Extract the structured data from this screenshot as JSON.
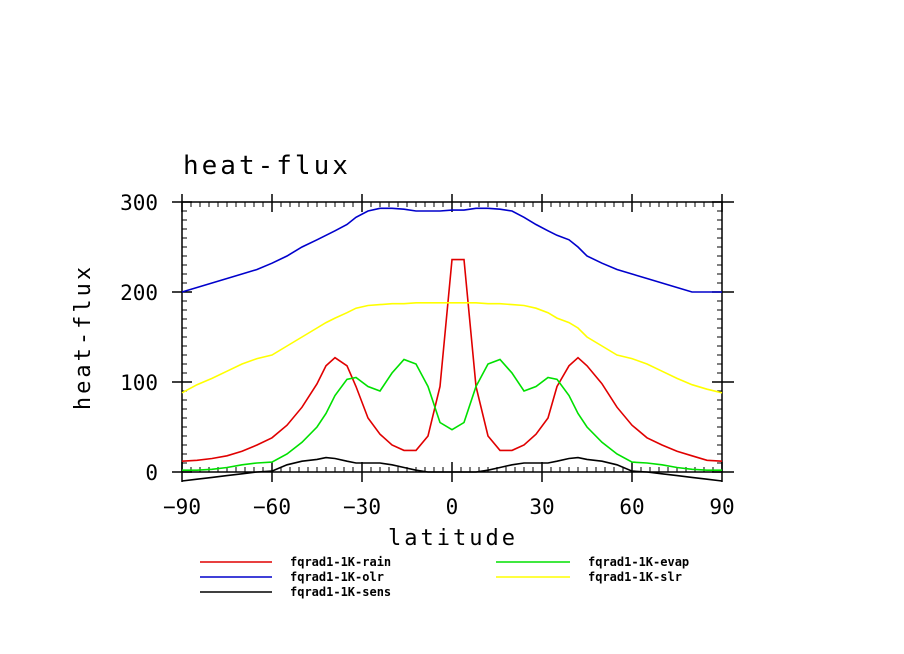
{
  "chart_data": {
    "type": "line",
    "title": "heat-flux",
    "xlabel": "latitude",
    "ylabel": "heat-flux",
    "xlim": [
      -90,
      90
    ],
    "ylim": [
      0,
      300
    ],
    "xticks": [
      -90,
      -60,
      -30,
      0,
      30,
      60,
      90
    ],
    "yticks": [
      0,
      100,
      200,
      300
    ],
    "grid": false,
    "legend_placement": "bottom",
    "x": [
      -90,
      -85,
      -80,
      -75,
      -70,
      -65,
      -60,
      -55,
      -50,
      -45,
      -42,
      -39,
      -35,
      -32,
      -28,
      -24,
      -20,
      -16,
      -12,
      -8,
      -4,
      0,
      4,
      8,
      12,
      16,
      20,
      24,
      28,
      32,
      35,
      39,
      42,
      45,
      50,
      55,
      60,
      65,
      70,
      75,
      80,
      85,
      90
    ],
    "series": [
      {
        "name": "fqrad1-1K-rain",
        "color": "#e00000",
        "values": [
          12,
          13,
          15,
          18,
          23,
          30,
          38,
          52,
          72,
          98,
          118,
          127,
          118,
          95,
          60,
          42,
          30,
          24,
          24,
          40,
          95,
          236,
          236,
          95,
          40,
          24,
          24,
          30,
          42,
          60,
          95,
          118,
          127,
          118,
          98,
          72,
          52,
          38,
          30,
          23,
          18,
          13,
          12
        ]
      },
      {
        "name": "fqrad1-1K-evap",
        "color": "#00e000",
        "values": [
          2,
          2,
          3,
          5,
          8,
          10,
          11,
          20,
          33,
          50,
          65,
          85,
          103,
          105,
          95,
          90,
          110,
          125,
          120,
          95,
          55,
          47,
          55,
          95,
          120,
          125,
          110,
          90,
          95,
          105,
          103,
          85,
          65,
          50,
          33,
          20,
          11,
          10,
          8,
          5,
          3,
          2,
          2
        ]
      },
      {
        "name": "fqrad1-1K-olr",
        "color": "#0000cc",
        "values": [
          200,
          205,
          210,
          215,
          220,
          225,
          232,
          240,
          250,
          258,
          263,
          268,
          275,
          283,
          290,
          293,
          293,
          292,
          290,
          290,
          290,
          291,
          291,
          293,
          293,
          292,
          290,
          283,
          275,
          268,
          263,
          258,
          250,
          240,
          232,
          225,
          220,
          215,
          210,
          205,
          200,
          200,
          200
        ]
      },
      {
        "name": "fqrad1-1K-slr",
        "color": "#ffff00",
        "values": [
          88,
          97,
          104,
          112,
          120,
          126,
          130,
          140,
          150,
          160,
          166,
          171,
          177,
          182,
          185,
          186,
          187,
          187,
          188,
          188,
          188,
          188,
          188,
          188,
          187,
          187,
          186,
          185,
          182,
          177,
          171,
          166,
          160,
          150,
          140,
          130,
          126,
          120,
          112,
          104,
          97,
          92,
          88
        ]
      },
      {
        "name": "fqrad1-1K-sens",
        "color": "#000000",
        "values": [
          -10,
          -8,
          -6,
          -4,
          -2,
          0,
          1,
          8,
          12,
          14,
          16,
          15,
          12,
          10,
          10,
          10,
          8,
          5,
          2,
          0,
          0,
          0,
          0,
          0,
          2,
          5,
          8,
          10,
          10,
          10,
          12,
          15,
          16,
          14,
          12,
          8,
          1,
          0,
          -2,
          -4,
          -6,
          -8,
          -10
        ]
      }
    ]
  }
}
